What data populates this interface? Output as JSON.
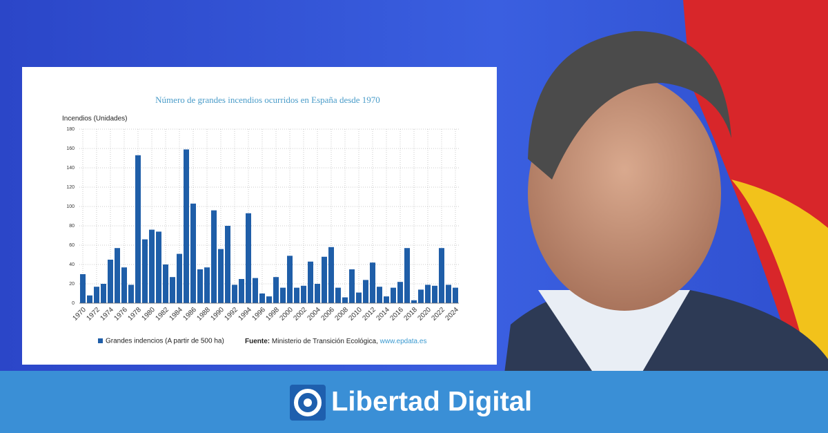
{
  "chart_data": {
    "type": "bar",
    "title": "Número de grandes incendios ocurridos en España desde 1970",
    "y_label": "Incendios (Unidades)",
    "categories": [
      "1970",
      null,
      "1972",
      null,
      "1974",
      null,
      "1976",
      null,
      "1978",
      null,
      "1980",
      null,
      "1982",
      null,
      "1984",
      null,
      "1986",
      null,
      "1988",
      null,
      "1990",
      null,
      "1992",
      null,
      "1994",
      null,
      "1996",
      null,
      "1998",
      null,
      "2000",
      null,
      "2002",
      null,
      "2004",
      null,
      "2006",
      null,
      "2008",
      null,
      "2010",
      null,
      "2012",
      null,
      "2014",
      null,
      "2016",
      null,
      "2018",
      null,
      "2020",
      null,
      "2022",
      null,
      "2024"
    ],
    "series": [
      {
        "name": "Grandes indencios (A partir de 500 ha)",
        "color": "#1f5ea8",
        "values": [
          30,
          8,
          17,
          20,
          45,
          57,
          37,
          19,
          153,
          66,
          76,
          74,
          40,
          27,
          51,
          159,
          103,
          35,
          37,
          96,
          56,
          80,
          19,
          25,
          93,
          26,
          10,
          7,
          27,
          16,
          49,
          16,
          18,
          43,
          20,
          48,
          58,
          16,
          6,
          35,
          11,
          24,
          42,
          17,
          7,
          16,
          22,
          57,
          3,
          14,
          19,
          18,
          57,
          19,
          16
        ]
      }
    ],
    "ylim": [
      0,
      180
    ],
    "yticks": [
      0,
      20,
      40,
      60,
      80,
      100,
      120,
      140,
      160,
      180
    ],
    "grid": true,
    "source_label": "Fuente:",
    "source": "Ministerio de Transición Ecológica,",
    "source_link": "www.epdata.es"
  },
  "banner": {
    "brand": "Libertad Digital"
  }
}
